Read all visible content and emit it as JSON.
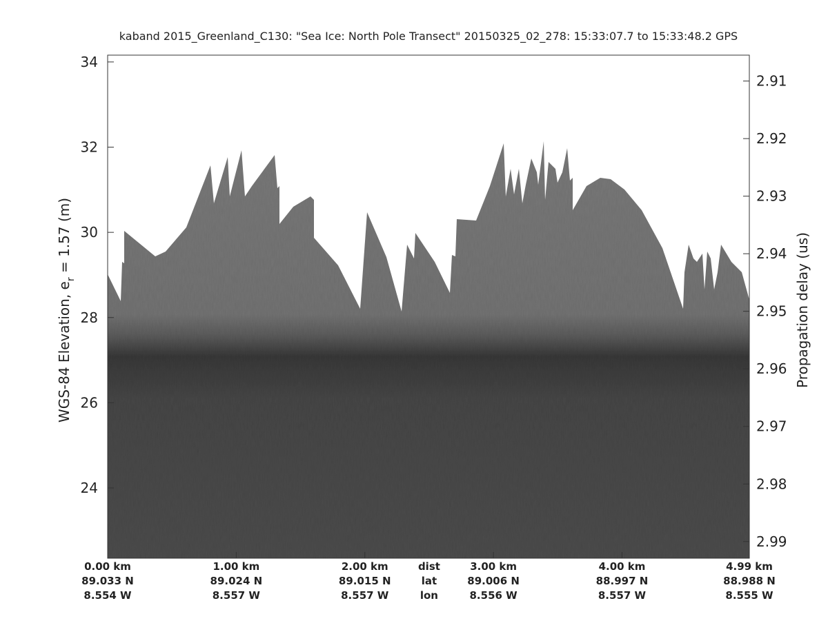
{
  "chart_data": {
    "type": "echogram",
    "title": "kaband 2015_Greenland_C130: \"Sea Ice: North Pole Transect\"  20150325_02_278: 15:33:07.7 to 15:33:48.2 GPS",
    "ylabel": [
      "WGS-84 Elevation, e",
      "r",
      " = 1.57 (m)"
    ],
    "y2label": "Propagation delay (us)",
    "ylim": [
      22.35,
      34.16
    ],
    "yticks": [
      24,
      26,
      28,
      30,
      32,
      34
    ],
    "y2lim": [
      2.9929,
      2.9055
    ],
    "y2ticks": [
      2.91,
      2.92,
      2.93,
      2.94,
      2.95,
      2.96,
      2.97,
      2.98,
      2.99
    ],
    "xlim": [
      0,
      4.99
    ],
    "xticks": [
      {
        "value": 0,
        "label": "0.00 km"
      },
      {
        "value": 1,
        "label": "1.00 km"
      },
      {
        "value": 2,
        "label": "2.00 km"
      },
      {
        "value": 3,
        "label": "3.00 km"
      },
      {
        "value": 4,
        "label": "4.00 km"
      },
      {
        "value": 4.99,
        "label": "4.99 km"
      }
    ],
    "xtick_lat": [
      "89.033 N",
      "89.024 N",
      "89.015 N",
      "89.006 N",
      "88.997 N",
      "88.988 N"
    ],
    "xtick_lon": [
      "8.554 W",
      "8.557 W",
      "8.557 W",
      "8.556 W",
      "8.557 W",
      "8.555 W"
    ],
    "row_labels": [
      "dist",
      "lat",
      "lon"
    ]
  }
}
